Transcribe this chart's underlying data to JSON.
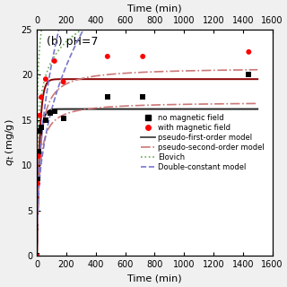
{
  "title": "(b) pH=7",
  "xlabel": "Time (min)",
  "ylabel": "q_t (mg/g)",
  "xlim": [
    0,
    1600
  ],
  "ylim": [
    0,
    25
  ],
  "xticks": [
    0,
    200,
    400,
    600,
    800,
    1000,
    1200,
    1400,
    1600
  ],
  "yticks": [
    0,
    5,
    10,
    15,
    20,
    25
  ],
  "scatter_no_field": {
    "x": [
      0,
      5,
      10,
      20,
      30,
      60,
      90,
      120,
      180,
      480,
      720,
      1440
    ],
    "y": [
      0,
      8.5,
      11.5,
      13.8,
      14.2,
      15.0,
      15.8,
      16.0,
      15.2,
      17.5,
      17.5,
      20.0
    ],
    "color": "black",
    "marker": "s",
    "label": "no magnetic field"
  },
  "scatter_with_field": {
    "x": [
      0,
      5,
      10,
      20,
      30,
      60,
      120,
      180,
      480,
      720,
      1440
    ],
    "y": [
      0,
      8.0,
      11.0,
      15.5,
      17.5,
      19.5,
      21.5,
      19.2,
      22.0,
      22.0,
      22.5
    ],
    "color": "red",
    "marker": "o",
    "label": "with magnetic field"
  },
  "pfo_no": {
    "qe": 16.2,
    "k1": 0.055,
    "color": "#222222",
    "lw": 1.4
  },
  "pfo_wi": {
    "qe": 19.5,
    "k1": 0.055,
    "color": "#8B0000",
    "lw": 1.4
  },
  "pso_no": {
    "qe": 17.0,
    "k2": 0.0035,
    "color": "#cc7777",
    "lw": 1.2
  },
  "pso_wi": {
    "qe": 20.8,
    "k2": 0.0025,
    "color": "#cc7777",
    "lw": 1.2
  },
  "elo_no": {
    "alpha": 30,
    "beta": 0.32,
    "color": "#66aa55",
    "lw": 1.2
  },
  "elo_wi": {
    "alpha": 80,
    "beta": 0.26,
    "color": "#66aa55",
    "lw": 1.2
  },
  "dc_no": {
    "a": 2.8,
    "b": 0.38,
    "color": "#7777cc",
    "lw": 1.2
  },
  "dc_wi": {
    "a": 3.2,
    "b": 0.41,
    "color": "#7777cc",
    "lw": 1.2
  },
  "legend_items": [
    {
      "label": "no magnetic field",
      "type": "scatter",
      "color": "black",
      "marker": "s"
    },
    {
      "label": "with magnetic field",
      "type": "scatter",
      "color": "red",
      "marker": "o"
    },
    {
      "label": "pseudo-first-order model",
      "type": "line",
      "color": "#444444",
      "ls": "-",
      "lw": 1.3
    },
    {
      "label": "pseudo-second-order model",
      "type": "line",
      "color": "#cc7777",
      "ls": "-.",
      "lw": 1.2
    },
    {
      "label": "Elovich",
      "type": "line",
      "color": "#66aa55",
      "ls": ":",
      "lw": 1.2
    },
    {
      "label": "Double-constant model",
      "type": "line",
      "color": "#7777cc",
      "ls": "--",
      "lw": 1.2
    }
  ],
  "legend_fontsize": 6.0,
  "title_fontsize": 9,
  "axis_fontsize": 8,
  "tick_fontsize": 7,
  "background_color": "#f0f0f0",
  "top_xlabel": "Time (min)",
  "top_xticks": [
    0,
    200,
    400,
    600,
    800,
    1000,
    1200,
    1400,
    1600
  ]
}
